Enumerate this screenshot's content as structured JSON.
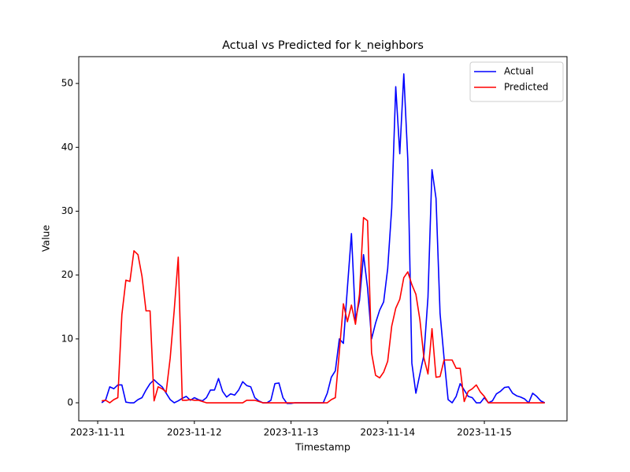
{
  "chart_data": {
    "type": "line",
    "title": "Actual vs Predicted for k_neighbors",
    "x_label": "Timestamp",
    "y_label": "Value",
    "x": [
      19672.0417,
      19672.0833,
      19672.125,
      19672.1667,
      19672.2083,
      19672.25,
      19672.2917,
      19672.3333,
      19672.375,
      19672.4167,
      19672.4583,
      19672.5,
      19672.5417,
      19672.5833,
      19672.625,
      19672.6667,
      19672.7083,
      19672.75,
      19672.7917,
      19672.8333,
      19672.875,
      19672.9167,
      19672.9583,
      19673,
      19673.0417,
      19673.0833,
      19673.125,
      19673.1667,
      19673.2083,
      19673.25,
      19673.2917,
      19673.3333,
      19673.375,
      19673.4167,
      19673.4583,
      19673.5,
      19673.5417,
      19673.5833,
      19673.625,
      19673.6667,
      19673.7083,
      19673.75,
      19673.7917,
      19673.8333,
      19673.875,
      19673.9167,
      19673.9583,
      19674,
      19674.0417,
      19674.0833,
      19674.125,
      19674.1667,
      19674.2083,
      19674.25,
      19674.2917,
      19674.3333,
      19674.375,
      19674.4167,
      19674.4583,
      19674.5,
      19674.5417,
      19674.5833,
      19674.625,
      19674.6667,
      19674.7083,
      19674.75,
      19674.7917,
      19674.8333,
      19674.875,
      19674.9167,
      19674.9583,
      19675,
      19675.0417,
      19675.0833,
      19675.125,
      19675.1667,
      19675.2083,
      19675.25,
      19675.2917,
      19675.3333,
      19675.375,
      19675.4167,
      19675.4583,
      19675.5,
      19675.5417,
      19675.5833,
      19675.625,
      19675.6667,
      19675.7083,
      19675.75,
      19675.7917,
      19675.8333,
      19675.875,
      19675.9167,
      19675.9583,
      19676,
      19676.0417,
      19676.0833,
      19676.125,
      19676.1667,
      19676.2083,
      19676.25,
      19676.2917,
      19676.3333,
      19676.375,
      19676.4167,
      19676.4583,
      19676.5,
      19676.5417,
      19676.5833,
      19676.625
    ],
    "series": [
      {
        "name": "Actual",
        "color": "#0000ff",
        "values": [
          0,
          0.5,
          2.5,
          2.2,
          2.8,
          2.8,
          0.1,
          0,
          0,
          0.5,
          0.8,
          2,
          3,
          3.6,
          3,
          2.5,
          1.5,
          0.5,
          0,
          0.3,
          0.7,
          1,
          0.4,
          0.8,
          0.5,
          0.3,
          0.8,
          2,
          2,
          3.8,
          1.8,
          0.9,
          1.4,
          1.2,
          2,
          3.3,
          2.7,
          2.5,
          0.8,
          0.3,
          0,
          0,
          0.4,
          3,
          3.1,
          0.8,
          -0.1,
          -0.1,
          0,
          0,
          0,
          0,
          0,
          0,
          0,
          0,
          1.5,
          4,
          5,
          10,
          9.3,
          18,
          26.5,
          13,
          16,
          23.2,
          18,
          10,
          12.5,
          14.5,
          15.8,
          21,
          30.5,
          49.5,
          39,
          51.5,
          38,
          6.2,
          1.5,
          4.5,
          7.5,
          16.5,
          36.5,
          32,
          14,
          7,
          0.5,
          0,
          1,
          3,
          2,
          1,
          0.8,
          0,
          0,
          0.8,
          0,
          0.3,
          1.4,
          1.8,
          2.4,
          2.5,
          1.5,
          1.1,
          0.9,
          0.6,
          0,
          1.5,
          1,
          0.3,
          0
        ]
      },
      {
        "name": "Predicted",
        "color": "#ff0000",
        "values": [
          0.3,
          0.4,
          0,
          0.5,
          0.8,
          13.8,
          19.2,
          19,
          23.8,
          23.2,
          19.8,
          14.4,
          14.4,
          0.3,
          2.5,
          2.2,
          1.7,
          7,
          14.5,
          22.8,
          0.4,
          0.4,
          0.5,
          0.4,
          0.4,
          0.2,
          0,
          0,
          0,
          0,
          0,
          0,
          0,
          0,
          0,
          0,
          0.4,
          0.4,
          0.4,
          0.2,
          0,
          0,
          0,
          0,
          0,
          0,
          0,
          0,
          0,
          0,
          0,
          0,
          0,
          0,
          0,
          0,
          0,
          0.5,
          0.8,
          8,
          15.5,
          12.7,
          15.3,
          12.3,
          17,
          29,
          28.5,
          7.8,
          4.3,
          3.9,
          4.8,
          6.5,
          12,
          14.8,
          16.2,
          19.6,
          20.5,
          18.5,
          17,
          13,
          7,
          4.5,
          11.6,
          4,
          4.1,
          6.7,
          6.7,
          6.7,
          5.4,
          5.4,
          0.2,
          1.8,
          2.2,
          2.8,
          1.7,
          1,
          0,
          0,
          0,
          0,
          0,
          0,
          0,
          0,
          0,
          0,
          0,
          0,
          0,
          0,
          0
        ]
      }
    ],
    "xlim": [
      19671.804,
      19676.855
    ],
    "xticks": [
      {
        "value": 19672,
        "label": "2023-11-11"
      },
      {
        "value": 19673,
        "label": "2023-11-12"
      },
      {
        "value": 19674,
        "label": "2023-11-13"
      },
      {
        "value": 19675,
        "label": "2023-11-14"
      },
      {
        "value": 19676,
        "label": "2023-11-15"
      }
    ],
    "ylim": [
      -2.83,
      54.2
    ],
    "yticks": [
      0,
      10,
      20,
      30,
      40,
      50
    ],
    "grid": false,
    "legend": "upper right"
  }
}
